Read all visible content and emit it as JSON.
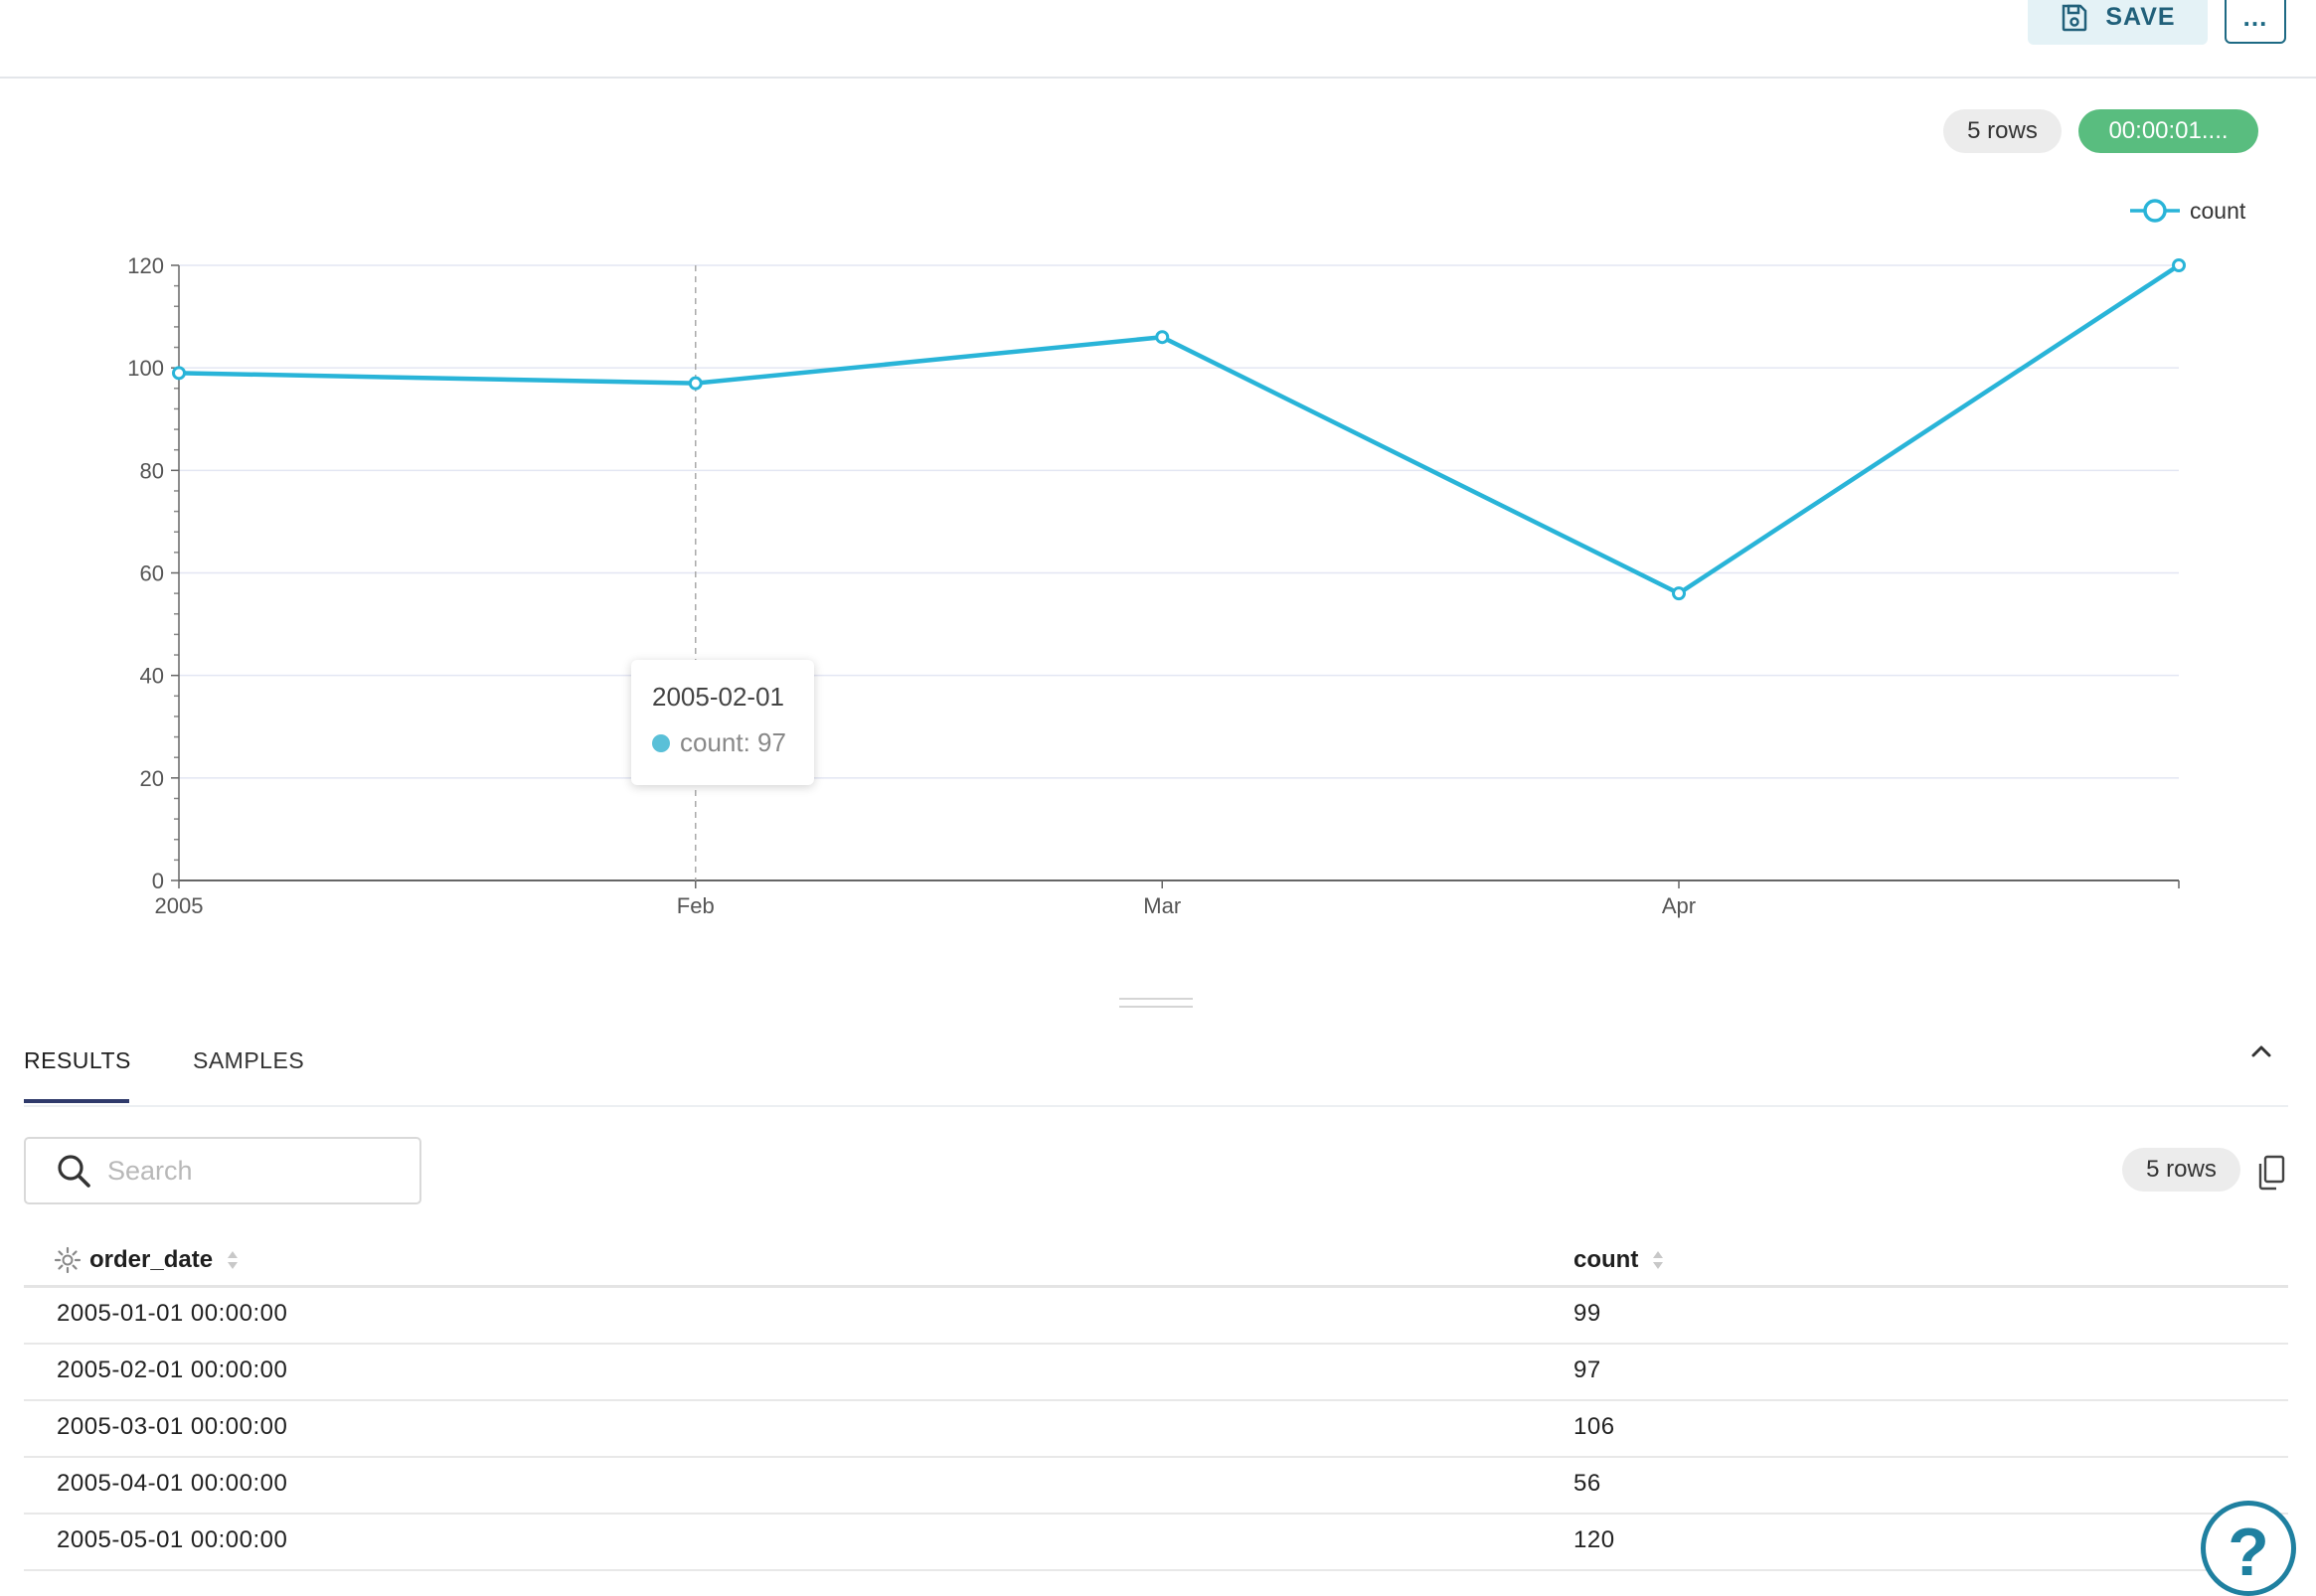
{
  "header": {
    "save_label": "SAVE",
    "more_label": "…"
  },
  "status": {
    "rows": "5 rows",
    "duration": "00:00:01...."
  },
  "colors": {
    "series": "#29b4d8",
    "success": "#59bd7f",
    "accent": "#1f80a0"
  },
  "chart_data": {
    "type": "line",
    "x": [
      "2005-01-01",
      "2005-02-01",
      "2005-03-01",
      "2005-04-01",
      "2005-05-01"
    ],
    "x_tick_labels": [
      "2005",
      "Feb",
      "Mar",
      "Apr"
    ],
    "series": [
      {
        "name": "count",
        "values": [
          99,
          97,
          106,
          56,
          120
        ]
      }
    ],
    "y_ticks": [
      0,
      20,
      40,
      60,
      80,
      100,
      120
    ],
    "ylim": [
      0,
      120
    ],
    "grid": true,
    "legend_position": "top-right"
  },
  "tooltip": {
    "date": "2005-02-01",
    "label": "count: 97"
  },
  "tabs": [
    {
      "label": "RESULTS"
    },
    {
      "label": "SAMPLES"
    }
  ],
  "search": {
    "placeholder": "Search",
    "value": ""
  },
  "results": {
    "rows_count": "5 rows",
    "columns": [
      "order_date",
      "count"
    ],
    "rows": [
      [
        "2005-01-01 00:00:00",
        "99"
      ],
      [
        "2005-02-01 00:00:00",
        "97"
      ],
      [
        "2005-03-01 00:00:00",
        "106"
      ],
      [
        "2005-04-01 00:00:00",
        "56"
      ],
      [
        "2005-05-01 00:00:00",
        "120"
      ]
    ]
  },
  "help": {
    "label": "?"
  }
}
